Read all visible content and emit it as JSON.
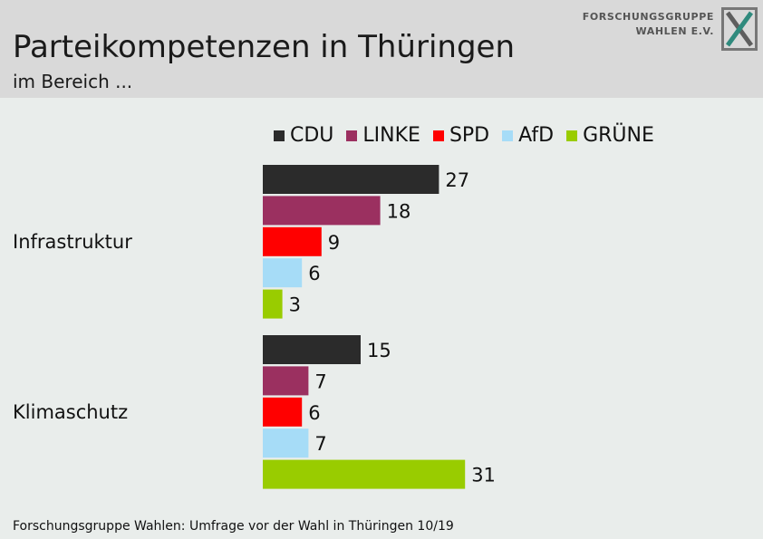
{
  "header": {
    "title": "Parteikompetenzen in Thüringen",
    "subtitle": "im Bereich ...",
    "logo_line1": "FORSCHUNGSGRUPPE",
    "logo_line2": "WAHLEN E.V."
  },
  "footer": {
    "source": "Forschungsgruppe Wahlen: Umfrage vor der Wahl in Thüringen 10/19"
  },
  "colors": {
    "background": "#e9edeb",
    "header": "#d9d9d9"
  },
  "chart_data": {
    "type": "bar",
    "orientation": "horizontal",
    "categories": [
      "Infrastruktur",
      "Klimaschutz"
    ],
    "series": [
      {
        "name": "CDU",
        "color": "#2b2b2b",
        "values": [
          27,
          15
        ]
      },
      {
        "name": "LINKE",
        "color": "#9b3060",
        "values": [
          18,
          7
        ]
      },
      {
        "name": "SPD",
        "color": "#ff0000",
        "values": [
          9,
          6
        ]
      },
      {
        "name": "AfD",
        "color": "#a6dcf7",
        "values": [
          6,
          7
        ]
      },
      {
        "name": "GRÜNE",
        "color": "#99cc00",
        "values": [
          3,
          31
        ]
      }
    ],
    "legend_position": "top",
    "grid": false,
    "xlim": [
      0,
      45
    ]
  }
}
